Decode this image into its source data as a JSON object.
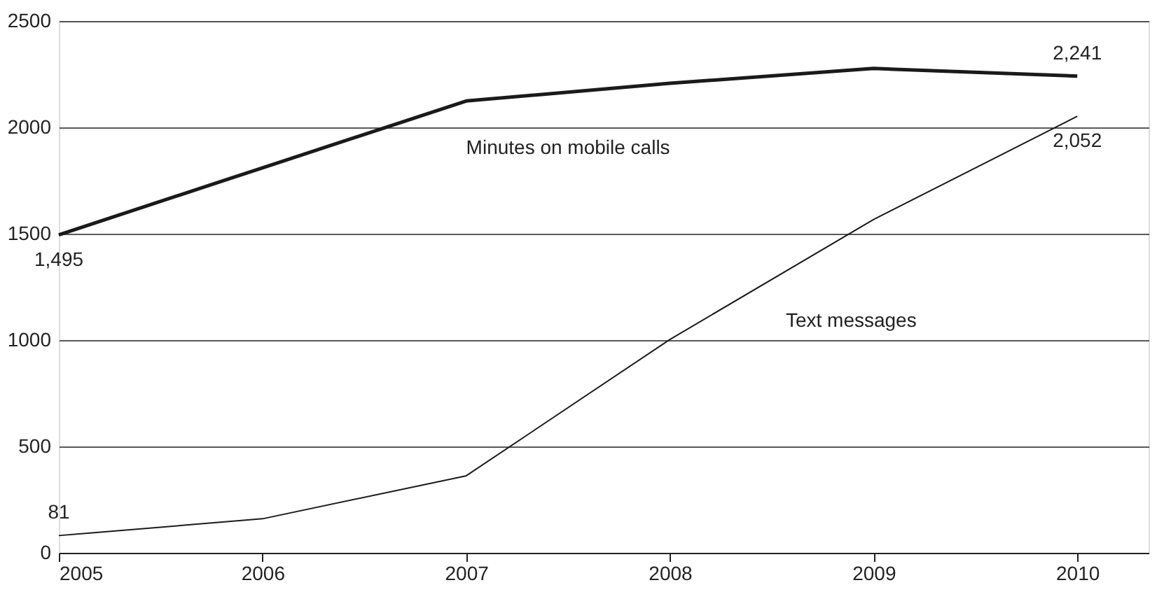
{
  "chart_data": {
    "type": "line",
    "x": [
      2005,
      2006,
      2007,
      2008,
      2009,
      2010
    ],
    "xlim": [
      2005,
      2010.35
    ],
    "xticks": [
      2005,
      2006,
      2007,
      2008,
      2009,
      2010
    ],
    "ylim": [
      0,
      2500
    ],
    "yticks": [
      0,
      500,
      1000,
      1500,
      2000,
      2500
    ],
    "grid": "y",
    "marker": "none",
    "line_style": "solid",
    "series": [
      {
        "name": "Minutes on mobile calls",
        "color": "#1a1a1a",
        "values": [
          1495,
          1810,
          2124,
          2207,
          2277,
          2241
        ],
        "value_labels": [
          "1,495",
          null,
          null,
          null,
          null,
          "2,241"
        ]
      },
      {
        "name": "Text messages",
        "color": "#1a1a1a",
        "values": [
          81,
          160,
          362,
          1003,
          1567,
          2052
        ],
        "value_labels": [
          "81",
          null,
          null,
          null,
          null,
          "2,052"
        ]
      }
    ]
  }
}
